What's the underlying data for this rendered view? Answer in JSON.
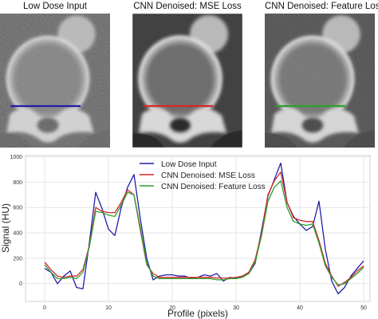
{
  "images": [
    {
      "title": "Low Dose Input",
      "line_color": "#1f1fa8",
      "noise": "high"
    },
    {
      "title": "CNN Denoised: MSE Loss",
      "line_color": "#d62728",
      "noise": "low"
    },
    {
      "title": "CNN Denoised: Feature Loss",
      "line_color": "#2ca02c",
      "noise": "medium"
    }
  ],
  "chart_data": {
    "type": "line",
    "xlabel": "Profile (pixels)",
    "ylabel": "Signal (HU)",
    "xlim": [
      -3,
      51
    ],
    "ylim": [
      -140,
      1010
    ],
    "xticks": [
      0,
      10,
      20,
      30,
      40,
      50
    ],
    "yticks": [
      0,
      200,
      400,
      600,
      800,
      1000
    ],
    "grid": true,
    "legend": "upper-center",
    "x": [
      0,
      1,
      2,
      3,
      4,
      5,
      6,
      7,
      8,
      9,
      10,
      11,
      12,
      13,
      14,
      15,
      16,
      17,
      18,
      19,
      20,
      21,
      22,
      23,
      24,
      25,
      26,
      27,
      28,
      29,
      30,
      31,
      32,
      33,
      34,
      35,
      36,
      37,
      38,
      39,
      40,
      41,
      42,
      43,
      44,
      45,
      46,
      47,
      48,
      49,
      50
    ],
    "series": [
      {
        "name": "Low Dose Input",
        "color": "#1f1fa8",
        "values": [
          120,
          90,
          0,
          60,
          100,
          -30,
          -40,
          320,
          720,
          590,
          430,
          380,
          600,
          760,
          860,
          510,
          200,
          30,
          60,
          70,
          70,
          60,
          60,
          40,
          50,
          70,
          60,
          80,
          20,
          50,
          40,
          60,
          80,
          160,
          420,
          690,
          820,
          950,
          640,
          530,
          470,
          420,
          450,
          650,
          270,
          20,
          -80,
          -30,
          60,
          120,
          180
        ]
      },
      {
        "name": "CNN Denoised: MSE Loss",
        "color": "#d62728",
        "values": [
          170,
          110,
          60,
          50,
          60,
          60,
          110,
          300,
          600,
          570,
          560,
          560,
          640,
          740,
          700,
          420,
          150,
          80,
          50,
          50,
          50,
          50,
          50,
          50,
          50,
          50,
          50,
          45,
          45,
          45,
          50,
          60,
          90,
          190,
          400,
          700,
          810,
          880,
          640,
          520,
          500,
          490,
          490,
          340,
          160,
          60,
          -20,
          10,
          50,
          100,
          140
        ]
      },
      {
        "name": "CNN Denoised: Feature Loss",
        "color": "#2ca02c",
        "values": [
          150,
          90,
          40,
          40,
          50,
          40,
          90,
          290,
          570,
          560,
          540,
          530,
          620,
          720,
          700,
          440,
          160,
          60,
          40,
          40,
          40,
          40,
          40,
          40,
          40,
          40,
          40,
          30,
          30,
          40,
          40,
          50,
          80,
          170,
          380,
          650,
          760,
          810,
          600,
          490,
          470,
          460,
          470,
          320,
          140,
          50,
          -10,
          0,
          40,
          80,
          130
        ]
      }
    ]
  }
}
